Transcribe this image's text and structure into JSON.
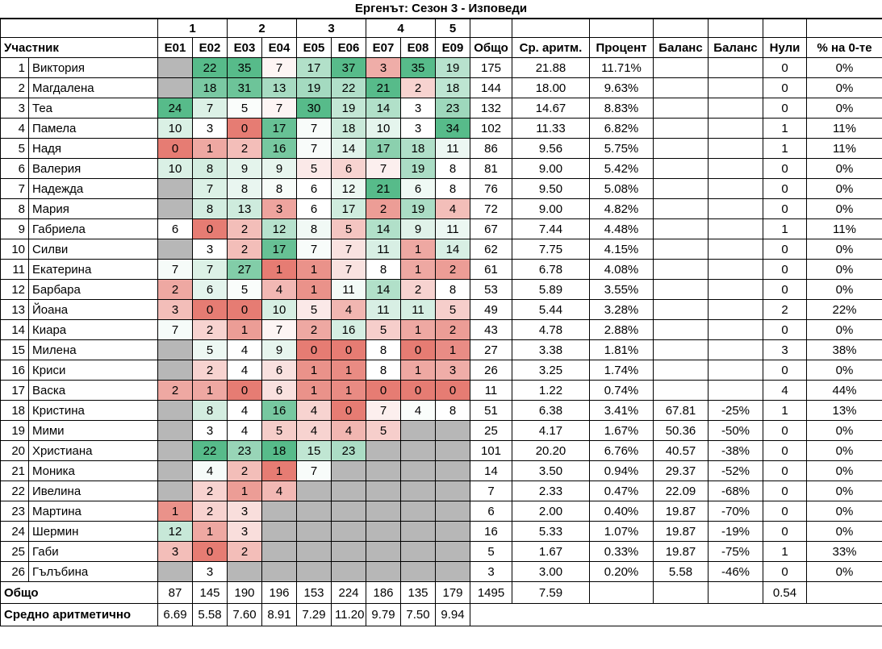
{
  "title": "Ергенът: Сезон 3 - Изповеди",
  "colors": {
    "scale_min": "#E67C73",
    "scale_mid": "#FFFFFF",
    "scale_max": "#57BB8A",
    "empty_cell": "#B7B7B7",
    "border": "#000000"
  },
  "table": {
    "groups": [
      "1",
      "2",
      "3",
      "4",
      "5"
    ],
    "headers": {
      "participant": "Участник",
      "episodes": [
        "E01",
        "E02",
        "E03",
        "E04",
        "E05",
        "E06",
        "E07",
        "E08",
        "E09"
      ],
      "totals": [
        "Общо",
        "Ср. аритм.",
        "Процент",
        "Баланс",
        "Баланс",
        "Нули",
        "% на 0-те"
      ]
    },
    "rows": [
      {
        "num": "1",
        "name": "Виктория",
        "scores": [
          null,
          22,
          35,
          7,
          17,
          37,
          3,
          35,
          19
        ],
        "total": "175",
        "avg": "21.88",
        "pct": "11.71%",
        "bal": "",
        "bal_pct": "",
        "zeros": "0",
        "zeros_pct": "0%"
      },
      {
        "num": "2",
        "name": "Магдалена",
        "scores": [
          null,
          18,
          31,
          13,
          19,
          22,
          21,
          2,
          18
        ],
        "total": "144",
        "avg": "18.00",
        "pct": "9.63%",
        "bal": "",
        "bal_pct": "",
        "zeros": "0",
        "zeros_pct": "0%"
      },
      {
        "num": "3",
        "name": "Теа",
        "scores": [
          24,
          7,
          5,
          7,
          30,
          19,
          14,
          3,
          23
        ],
        "total": "132",
        "avg": "14.67",
        "pct": "8.83%",
        "bal": "",
        "bal_pct": "",
        "zeros": "0",
        "zeros_pct": "0%"
      },
      {
        "num": "4",
        "name": "Памела",
        "scores": [
          10,
          3,
          0,
          17,
          7,
          18,
          10,
          3,
          34
        ],
        "total": "102",
        "avg": "11.33",
        "pct": "6.82%",
        "bal": "",
        "bal_pct": "",
        "zeros": "1",
        "zeros_pct": "11%"
      },
      {
        "num": "5",
        "name": "Надя",
        "scores": [
          0,
          1,
          2,
          16,
          7,
          14,
          17,
          18,
          11
        ],
        "total": "86",
        "avg": "9.56",
        "pct": "5.75%",
        "bal": "",
        "bal_pct": "",
        "zeros": "1",
        "zeros_pct": "11%"
      },
      {
        "num": "6",
        "name": "Валерия",
        "scores": [
          10,
          8,
          9,
          9,
          5,
          6,
          7,
          19,
          8
        ],
        "total": "81",
        "avg": "9.00",
        "pct": "5.42%",
        "bal": "",
        "bal_pct": "",
        "zeros": "0",
        "zeros_pct": "0%"
      },
      {
        "num": "7",
        "name": "Надежда",
        "scores": [
          null,
          7,
          8,
          8,
          6,
          12,
          21,
          6,
          8
        ],
        "total": "76",
        "avg": "9.50",
        "pct": "5.08%",
        "bal": "",
        "bal_pct": "",
        "zeros": "0",
        "zeros_pct": "0%"
      },
      {
        "num": "8",
        "name": "Мария",
        "scores": [
          null,
          8,
          13,
          3,
          6,
          17,
          2,
          19,
          4
        ],
        "total": "72",
        "avg": "9.00",
        "pct": "4.82%",
        "bal": "",
        "bal_pct": "",
        "zeros": "0",
        "zeros_pct": "0%"
      },
      {
        "num": "9",
        "name": "Габриела",
        "scores": [
          6,
          0,
          2,
          12,
          8,
          5,
          14,
          9,
          11
        ],
        "total": "67",
        "avg": "7.44",
        "pct": "4.48%",
        "bal": "",
        "bal_pct": "",
        "zeros": "1",
        "zeros_pct": "11%"
      },
      {
        "num": "10",
        "name": "Силви",
        "scores": [
          null,
          3,
          2,
          17,
          7,
          7,
          11,
          1,
          14
        ],
        "total": "62",
        "avg": "7.75",
        "pct": "4.15%",
        "bal": "",
        "bal_pct": "",
        "zeros": "0",
        "zeros_pct": "0%"
      },
      {
        "num": "11",
        "name": "Екатерина",
        "scores": [
          7,
          7,
          27,
          1,
          1,
          7,
          8,
          1,
          2
        ],
        "total": "61",
        "avg": "6.78",
        "pct": "4.08%",
        "bal": "",
        "bal_pct": "",
        "zeros": "0",
        "zeros_pct": "0%"
      },
      {
        "num": "12",
        "name": "Барбара",
        "scores": [
          2,
          6,
          5,
          4,
          1,
          11,
          14,
          2,
          8
        ],
        "total": "53",
        "avg": "5.89",
        "pct": "3.55%",
        "bal": "",
        "bal_pct": "",
        "zeros": "0",
        "zeros_pct": "0%"
      },
      {
        "num": "13",
        "name": "Йоана",
        "scores": [
          3,
          0,
          0,
          10,
          5,
          4,
          11,
          11,
          5
        ],
        "total": "49",
        "avg": "5.44",
        "pct": "3.28%",
        "bal": "",
        "bal_pct": "",
        "zeros": "2",
        "zeros_pct": "22%"
      },
      {
        "num": "14",
        "name": "Киара",
        "scores": [
          7,
          2,
          1,
          7,
          2,
          16,
          5,
          1,
          2
        ],
        "total": "43",
        "avg": "4.78",
        "pct": "2.88%",
        "bal": "",
        "bal_pct": "",
        "zeros": "0",
        "zeros_pct": "0%"
      },
      {
        "num": "15",
        "name": "Милена",
        "scores": [
          null,
          5,
          4,
          9,
          0,
          0,
          8,
          0,
          1
        ],
        "total": "27",
        "avg": "3.38",
        "pct": "1.81%",
        "bal": "",
        "bal_pct": "",
        "zeros": "3",
        "zeros_pct": "38%"
      },
      {
        "num": "16",
        "name": "Криси",
        "scores": [
          null,
          2,
          4,
          6,
          1,
          1,
          8,
          1,
          3
        ],
        "total": "26",
        "avg": "3.25",
        "pct": "1.74%",
        "bal": "",
        "bal_pct": "",
        "zeros": "0",
        "zeros_pct": "0%"
      },
      {
        "num": "17",
        "name": "Васка",
        "scores": [
          2,
          1,
          0,
          6,
          1,
          1,
          0,
          0,
          0
        ],
        "total": "11",
        "avg": "1.22",
        "pct": "0.74%",
        "bal": "",
        "bal_pct": "",
        "zeros": "4",
        "zeros_pct": "44%"
      },
      {
        "num": "18",
        "name": "Кристина",
        "scores": [
          null,
          8,
          4,
          16,
          4,
          0,
          7,
          4,
          8
        ],
        "total": "51",
        "avg": "6.38",
        "pct": "3.41%",
        "bal": "67.81",
        "bal_pct": "-25%",
        "zeros": "1",
        "zeros_pct": "13%"
      },
      {
        "num": "19",
        "name": "Мими",
        "scores": [
          null,
          3,
          4,
          5,
          4,
          4,
          5,
          null,
          null
        ],
        "total": "25",
        "avg": "4.17",
        "pct": "1.67%",
        "bal": "50.36",
        "bal_pct": "-50%",
        "zeros": "0",
        "zeros_pct": "0%"
      },
      {
        "num": "20",
        "name": "Христиана",
        "scores": [
          null,
          22,
          23,
          18,
          15,
          23,
          null,
          null,
          null
        ],
        "total": "101",
        "avg": "20.20",
        "pct": "6.76%",
        "bal": "40.57",
        "bal_pct": "-38%",
        "zeros": "0",
        "zeros_pct": "0%"
      },
      {
        "num": "21",
        "name": "Моника",
        "scores": [
          null,
          4,
          2,
          1,
          7,
          null,
          null,
          null,
          null
        ],
        "total": "14",
        "avg": "3.50",
        "pct": "0.94%",
        "bal": "29.37",
        "bal_pct": "-52%",
        "zeros": "0",
        "zeros_pct": "0%"
      },
      {
        "num": "22",
        "name": "Ивелина",
        "scores": [
          null,
          2,
          1,
          4,
          null,
          null,
          null,
          null,
          null
        ],
        "total": "7",
        "avg": "2.33",
        "pct": "0.47%",
        "bal": "22.09",
        "bal_pct": "-68%",
        "zeros": "0",
        "zeros_pct": "0%"
      },
      {
        "num": "23",
        "name": "Мартина",
        "scores": [
          1,
          2,
          3,
          null,
          null,
          null,
          null,
          null,
          null
        ],
        "total": "6",
        "avg": "2.00",
        "pct": "0.40%",
        "bal": "19.87",
        "bal_pct": "-70%",
        "zeros": "0",
        "zeros_pct": "0%"
      },
      {
        "num": "24",
        "name": "Шермин",
        "scores": [
          12,
          1,
          3,
          null,
          null,
          null,
          null,
          null,
          null
        ],
        "total": "16",
        "avg": "5.33",
        "pct": "1.07%",
        "bal": "19.87",
        "bal_pct": "-19%",
        "zeros": "0",
        "zeros_pct": "0%"
      },
      {
        "num": "25",
        "name": "Габи",
        "scores": [
          3,
          0,
          2,
          null,
          null,
          null,
          null,
          null,
          null
        ],
        "total": "5",
        "avg": "1.67",
        "pct": "0.33%",
        "bal": "19.87",
        "bal_pct": "-75%",
        "zeros": "1",
        "zeros_pct": "33%"
      },
      {
        "num": "26",
        "name": "Гълъбина",
        "scores": [
          null,
          3,
          null,
          null,
          null,
          null,
          null,
          null,
          null
        ],
        "total": "3",
        "avg": "3.00",
        "pct": "0.20%",
        "bal": "5.58",
        "bal_pct": "-46%",
        "zeros": "0",
        "zeros_pct": "0%"
      }
    ],
    "footer_total": {
      "label": "Общо",
      "scores": [
        "87",
        "145",
        "190",
        "196",
        "153",
        "224",
        "186",
        "135",
        "179"
      ],
      "total": "1495",
      "avg": "7.59",
      "pct": "",
      "bal": "",
      "bal_pct": "",
      "zeros": "0.54",
      "zeros_pct": ""
    },
    "footer_avg": {
      "label": "Средно аритметично",
      "scores": [
        "6.69",
        "5.58",
        "7.60",
        "8.91",
        "7.29",
        "11.20",
        "9.79",
        "7.50",
        "9.94"
      ]
    }
  }
}
